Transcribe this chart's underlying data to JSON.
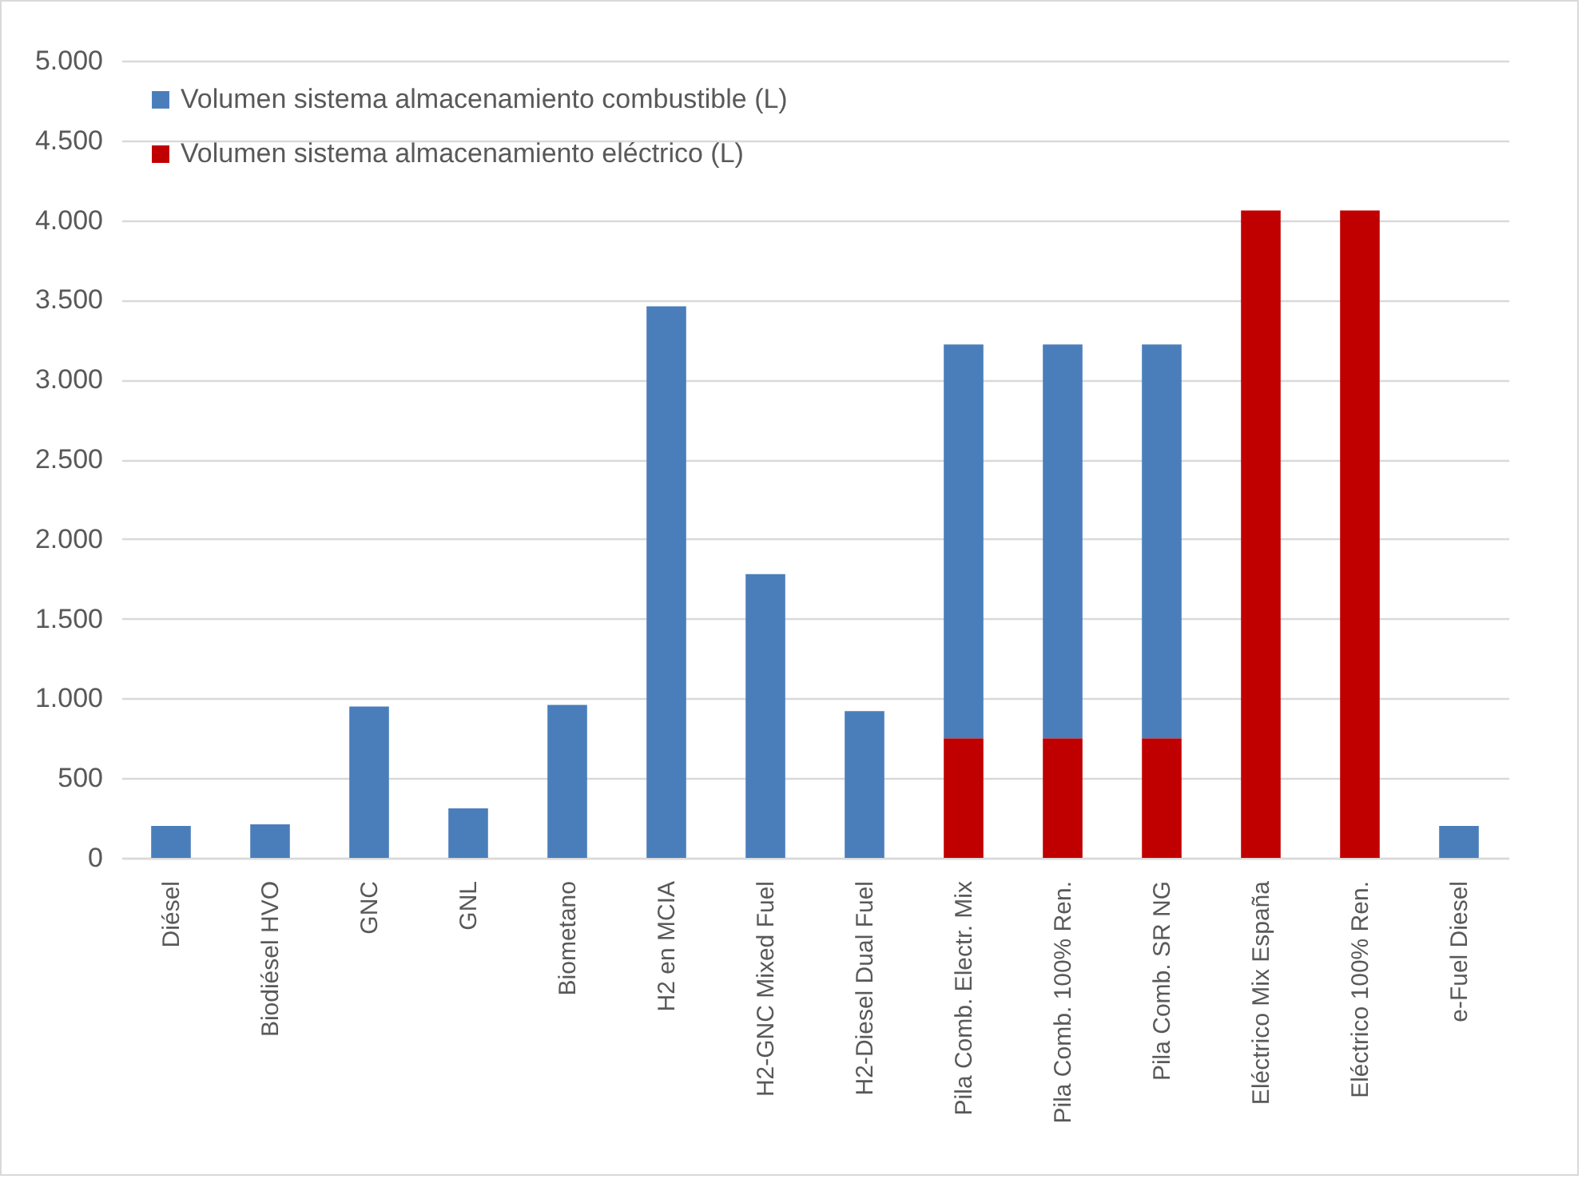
{
  "chart_data": {
    "type": "bar",
    "stacked": true,
    "categories": [
      "Diésel",
      "Biodiésel HVO",
      "GNC",
      "GNL",
      "Biometano",
      "H2 en MCIA",
      "H2-GNC Mixed Fuel",
      "H2-Diesel Dual Fuel",
      "Pila Comb. Electr. Mix",
      "Pila Comb. 100% Ren.",
      "Pila Comb. SR NG",
      "Eléctrico Mix España",
      "Eléctrico 100% Ren.",
      "e-Fuel Diesel"
    ],
    "series": [
      {
        "name": "Volumen sistema almacenamiento eléctrico (L)",
        "color": "#c00000",
        "values": [
          null,
          null,
          null,
          null,
          null,
          null,
          null,
          null,
          750,
          750,
          750,
          4060,
          4060,
          null
        ]
      },
      {
        "name": "Volumen sistema almacenamiento combustible (L)",
        "color": "#4a7ebb",
        "values": [
          200,
          210,
          950,
          310,
          960,
          3460,
          1780,
          920,
          2470,
          2470,
          2470,
          null,
          null,
          200
        ]
      }
    ],
    "ylim": [
      0,
      5000
    ],
    "yticks": [
      0,
      {
        "value": 500,
        "label": "500"
      },
      {
        "value": 1000,
        "label": "1.000"
      },
      {
        "value": 1500,
        "label": "1.500"
      },
      {
        "value": 2000,
        "label": "2.000"
      },
      {
        "value": 2500,
        "label": "2.500"
      },
      {
        "value": 3000,
        "label": "3.000"
      },
      {
        "value": 3500,
        "label": "3.500"
      },
      {
        "value": 4000,
        "label": "4.000"
      },
      {
        "value": 4500,
        "label": "4.500"
      },
      {
        "value": 5000,
        "label": "5.000"
      }
    ],
    "grid": "y",
    "legend": "top left"
  }
}
